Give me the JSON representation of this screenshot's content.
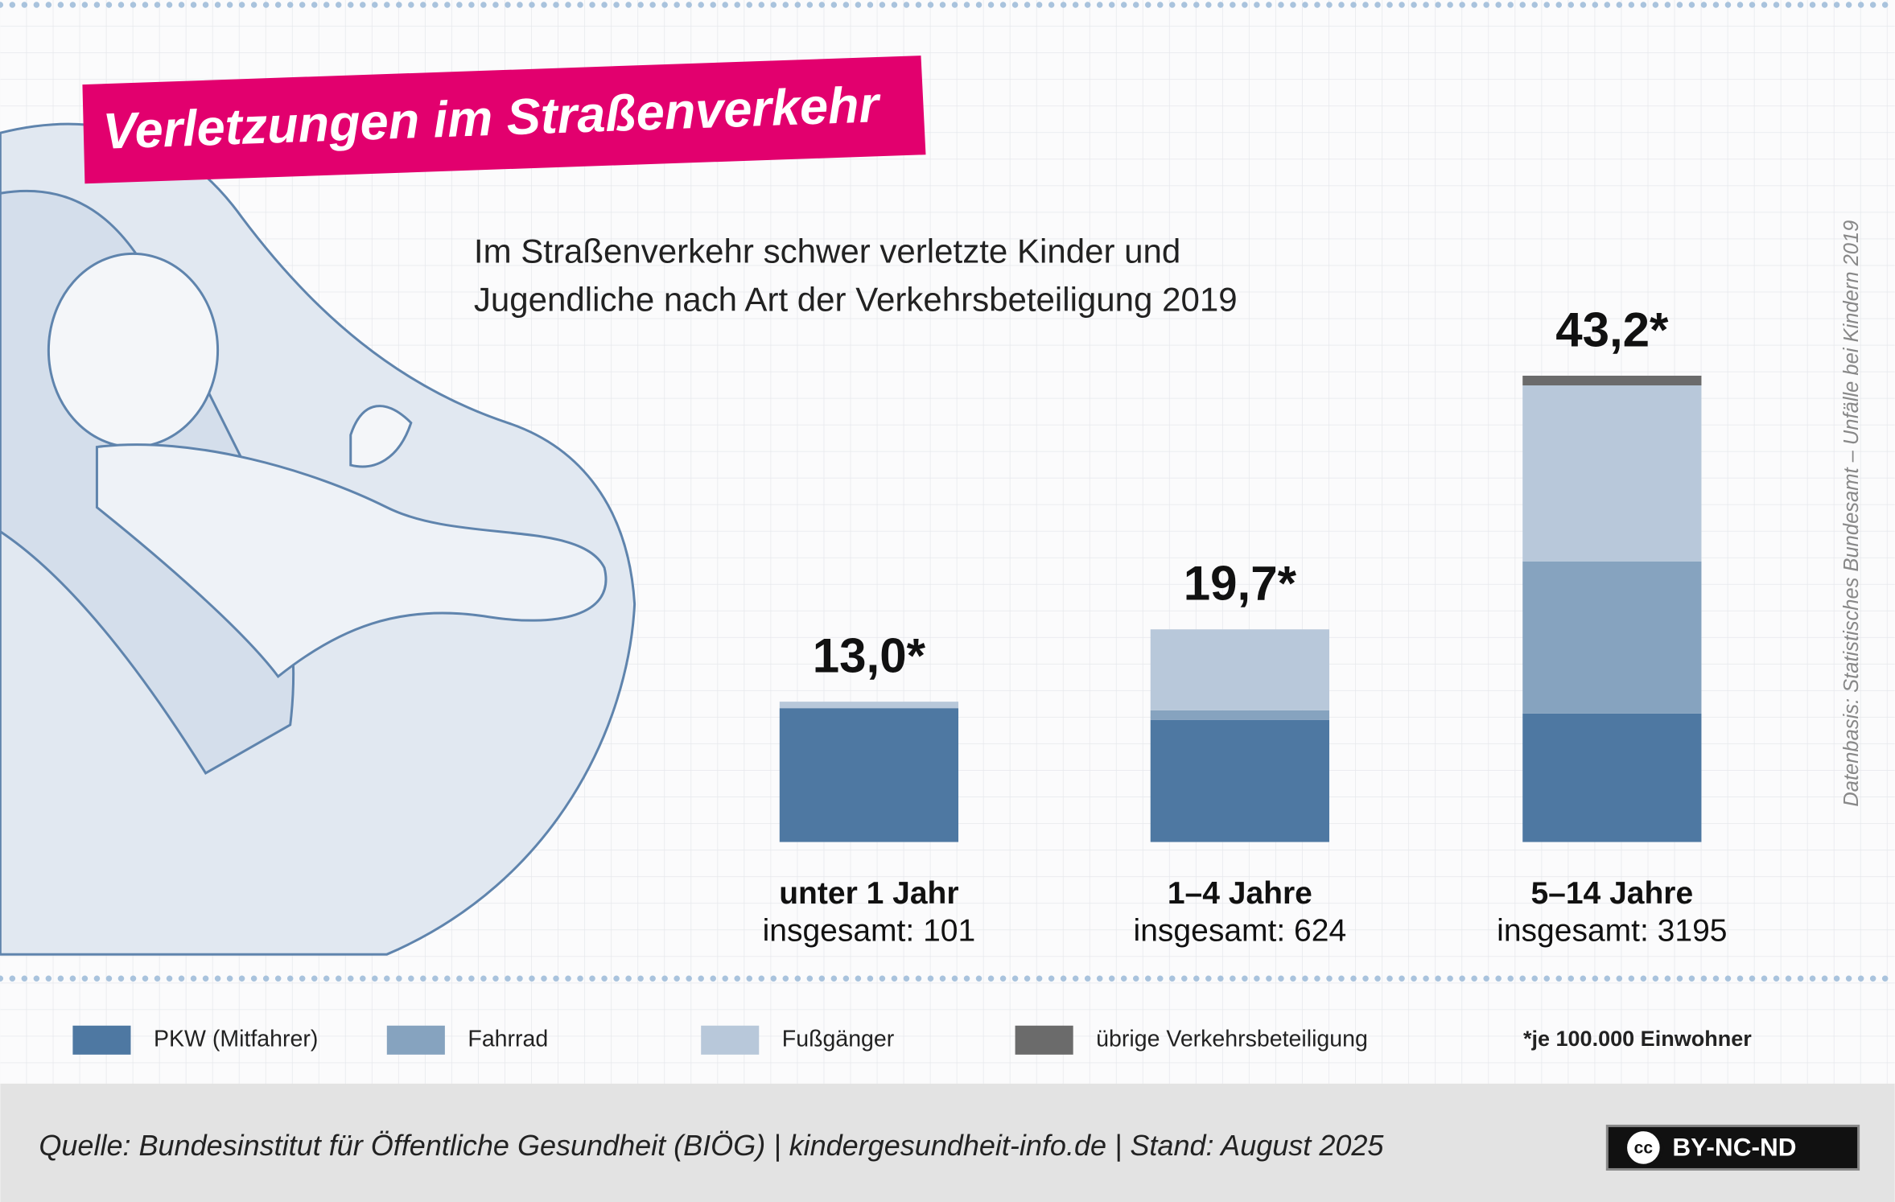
{
  "chart_data": {
    "type": "stacked-bar",
    "title": "Verletzungen im Straßenverkehr",
    "subtitle": [
      "Im Straßenverkehr schwer verletzte Kinder und",
      "Jugendliche nach Art der Verkehrsbeteiligung 2019"
    ],
    "categories": [
      "unter 1 Jahr",
      "1–4 Jahre",
      "5–14 Jahre"
    ],
    "category_notes": [
      "insgesamt: 101",
      "insgesamt: 624",
      "insgesamt: 3195"
    ],
    "totals": [
      13.0,
      19.7,
      43.2
    ],
    "totals_labels": [
      "13,0*",
      "19,7*",
      "43,2*"
    ],
    "series": [
      {
        "name": "PKW (Mitfahrer)",
        "color": "#4e78a2",
        "values": [
          12.4,
          11.3,
          11.9
        ]
      },
      {
        "name": "Fahrrad",
        "color": "#86a3bf",
        "values": [
          0,
          0.9,
          14.1
        ]
      },
      {
        "name": "Fußgänger",
        "color": "#b8c8da",
        "values": [
          0.6,
          7.5,
          16.3
        ]
      },
      {
        "name": "übrige Verkehrsbeteiligung",
        "color": "#6b6b6b",
        "values": [
          0,
          0,
          0.9
        ]
      }
    ],
    "footnote": "*je 100.000 Einwohner",
    "source_note": "Datenbasis: Statistisches Bundesamt – Unfälle bei Kindern 2019",
    "source": "Quelle: Bundesinstitut für Öffentliche Gesundheit (BIÖG) | kindergesundheit-info.de | Stand: August 2025",
    "license": {
      "icon": "cc",
      "text": "BY-NC-ND"
    }
  }
}
